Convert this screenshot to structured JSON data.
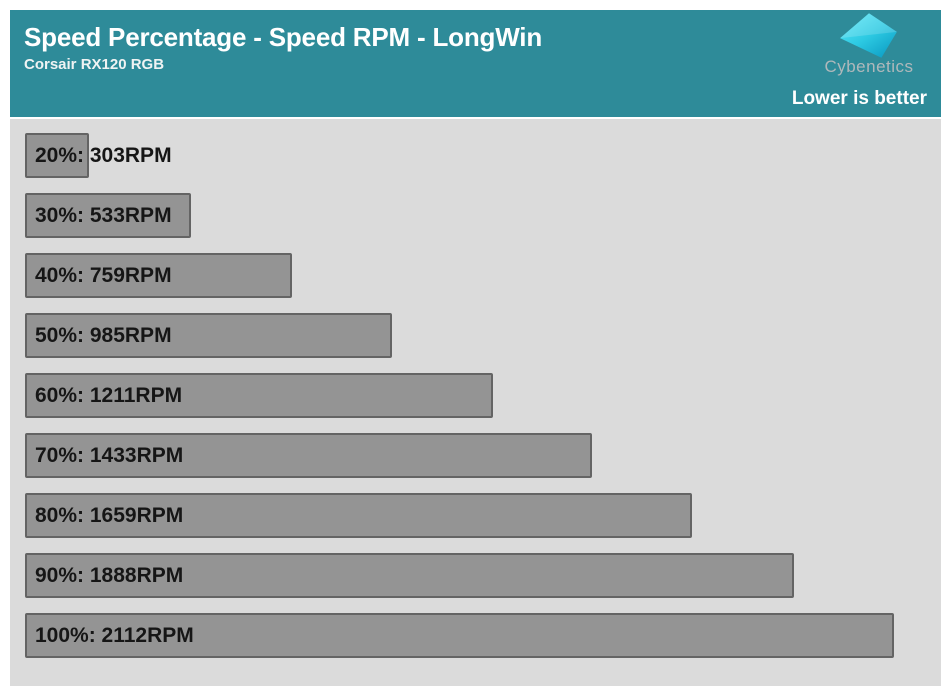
{
  "header": {
    "title": "Speed Percentage - Speed RPM - LongWin",
    "subtitle": "Corsair RX120 RGB",
    "note": "Lower is better",
    "bg_color": "#2E8B99",
    "logo": {
      "text": "Cybenetics",
      "icon": "cyan-diamond",
      "gradient": [
        "#5FE9F8",
        "#0D9DC4"
      ]
    }
  },
  "chart_data": {
    "type": "bar",
    "orientation": "horizontal",
    "title": "Speed Percentage - Speed RPM - LongWin",
    "subtitle": "Corsair RX120 RGB",
    "annotation": "Lower is better",
    "categories": [
      "20%",
      "30%",
      "40%",
      "50%",
      "60%",
      "70%",
      "80%",
      "90%",
      "100%"
    ],
    "values": [
      303,
      533,
      759,
      985,
      1211,
      1433,
      1659,
      1888,
      2112
    ],
    "unit": "RPM",
    "labels": [
      "20%: 303RPM",
      "30%: 533RPM",
      "40%: 759RPM",
      "50%: 985RPM",
      "60%: 1211RPM",
      "70%: 1433RPM",
      "80%: 1659RPM",
      "90%: 1888RPM",
      "100%: 2112RPM"
    ],
    "xlim": [
      160,
      2112
    ],
    "grid": false,
    "legend": false,
    "value_axis_visible": false,
    "bar_color": "#949494",
    "bar_border_color": "#646464",
    "plot_bg": "#DBDBDB",
    "label_color": "#161616"
  }
}
